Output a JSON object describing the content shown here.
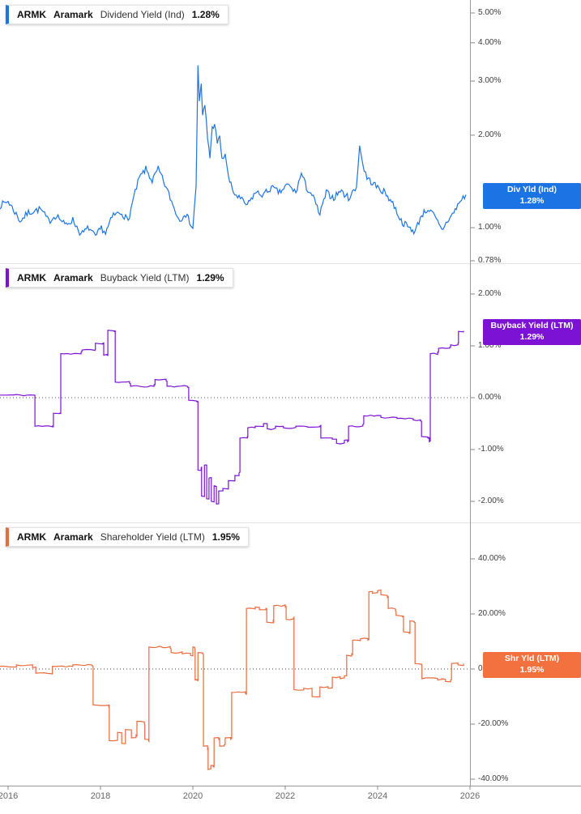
{
  "x_axis": {
    "labels": [
      {
        "year": 2016,
        "text": "2016"
      },
      {
        "year": 2018,
        "text": "2018"
      },
      {
        "year": 2020,
        "text": "2020"
      },
      {
        "year": 2022,
        "text": "2022"
      },
      {
        "year": 2024,
        "text": "2024"
      },
      {
        "year": 2026,
        "text": "2026"
      }
    ]
  },
  "chart_data": [
    {
      "type": "line",
      "legend": {
        "ticker": "ARMK",
        "company": "Aramark",
        "series": "Dividend Yield (Ind)",
        "value": "1.28%"
      },
      "color": "#1c74e4",
      "scale": "log",
      "ylim": [
        0.766,
        5.51
      ],
      "yticks": [
        {
          "v": 5,
          "label": "5.00%"
        },
        {
          "v": 4,
          "label": "4.00%"
        },
        {
          "v": 3,
          "label": "3.00%"
        },
        {
          "v": 2,
          "label": "2.00%"
        },
        {
          "v": 1,
          "label": "1.00%"
        },
        {
          "v": 0.78,
          "label": "0.78%"
        }
      ],
      "zero_line": false,
      "badge": {
        "label": "Div Yld (Ind)",
        "value": "1.28%",
        "color": "#1c74e4",
        "v": 1.28
      },
      "interp": "noisy",
      "jitter": 0.05,
      "jitter_rel": true,
      "seed": 7,
      "points": [
        [
          2015.82,
          1.18
        ],
        [
          2016.0,
          1.22
        ],
        [
          2016.26,
          1.05
        ],
        [
          2016.44,
          1.12
        ],
        [
          2016.7,
          1.15
        ],
        [
          2016.88,
          1.05
        ],
        [
          2017.05,
          1.1
        ],
        [
          2017.23,
          1.02
        ],
        [
          2017.4,
          1.06
        ],
        [
          2017.58,
          0.95
        ],
        [
          2017.75,
          1.0
        ],
        [
          2017.89,
          0.93
        ],
        [
          2018.02,
          1.0
        ],
        [
          2018.11,
          0.96
        ],
        [
          2018.28,
          1.1
        ],
        [
          2018.46,
          1.12
        ],
        [
          2018.6,
          1.05
        ],
        [
          2018.72,
          1.25
        ],
        [
          2018.84,
          1.45
        ],
        [
          2018.98,
          1.55
        ],
        [
          2019.12,
          1.42
        ],
        [
          2019.25,
          1.55
        ],
        [
          2019.42,
          1.35
        ],
        [
          2019.6,
          1.15
        ],
        [
          2019.72,
          1.05
        ],
        [
          2019.82,
          1.12
        ],
        [
          2019.93,
          1.05
        ],
        [
          2020.0,
          1.0
        ],
        [
          2020.07,
          1.35
        ],
        [
          2020.11,
          3.4
        ],
        [
          2020.14,
          2.6
        ],
        [
          2020.18,
          2.9
        ],
        [
          2020.21,
          2.3
        ],
        [
          2020.26,
          2.5
        ],
        [
          2020.32,
          1.95
        ],
        [
          2020.37,
          1.7
        ],
        [
          2020.42,
          2.1
        ],
        [
          2020.47,
          2.2
        ],
        [
          2020.53,
          1.85
        ],
        [
          2020.58,
          2.0
        ],
        [
          2020.63,
          1.65
        ],
        [
          2020.7,
          1.75
        ],
        [
          2020.77,
          1.45
        ],
        [
          2020.88,
          1.3
        ],
        [
          2021.0,
          1.25
        ],
        [
          2021.18,
          1.18
        ],
        [
          2021.35,
          1.3
        ],
        [
          2021.53,
          1.28
        ],
        [
          2021.7,
          1.35
        ],
        [
          2021.88,
          1.3
        ],
        [
          2022.05,
          1.38
        ],
        [
          2022.23,
          1.3
        ],
        [
          2022.35,
          1.5
        ],
        [
          2022.46,
          1.35
        ],
        [
          2022.58,
          1.28
        ],
        [
          2022.75,
          1.1
        ],
        [
          2022.89,
          1.3
        ],
        [
          2023.05,
          1.25
        ],
        [
          2023.19,
          1.32
        ],
        [
          2023.37,
          1.25
        ],
        [
          2023.54,
          1.35
        ],
        [
          2023.61,
          1.85
        ],
        [
          2023.68,
          1.6
        ],
        [
          2023.77,
          1.45
        ],
        [
          2023.89,
          1.4
        ],
        [
          2024.0,
          1.35
        ],
        [
          2024.16,
          1.3
        ],
        [
          2024.33,
          1.2
        ],
        [
          2024.51,
          1.05
        ],
        [
          2024.68,
          1.0
        ],
        [
          2024.81,
          0.97
        ],
        [
          2024.95,
          1.1
        ],
        [
          2025.09,
          1.15
        ],
        [
          2025.21,
          1.1
        ],
        [
          2025.39,
          0.98
        ],
        [
          2025.51,
          1.05
        ],
        [
          2025.65,
          1.12
        ],
        [
          2025.79,
          1.22
        ],
        [
          2025.91,
          1.28
        ]
      ]
    },
    {
      "type": "line",
      "legend": {
        "ticker": "ARMK",
        "company": "Aramark",
        "series": "Buyback Yield (LTM)",
        "value": "1.29%"
      },
      "color": "#7b12d4",
      "scale": "linear",
      "ylim": [
        -2.406,
        2.594
      ],
      "yticks": [
        {
          "v": 2,
          "label": "2.00%"
        },
        {
          "v": 1,
          "label": "1.00%"
        },
        {
          "v": 0,
          "label": "0.00%"
        },
        {
          "v": -1,
          "label": "-1.00%"
        },
        {
          "v": -2,
          "label": "-2.00%"
        }
      ],
      "zero_line": true,
      "badge": {
        "label": "Buyback Yield (LTM)",
        "value": "1.29%",
        "color": "#7b12d4",
        "v": 1.29
      },
      "interp": "step",
      "jitter": 0.03,
      "jitter_rel": false,
      "seed": 11,
      "points": [
        [
          2015.82,
          0.05
        ],
        [
          2016.56,
          0.05
        ],
        [
          2016.58,
          -0.55
        ],
        [
          2016.96,
          -0.55
        ],
        [
          2016.98,
          -0.3
        ],
        [
          2017.12,
          -0.3
        ],
        [
          2017.14,
          0.85
        ],
        [
          2017.58,
          0.88
        ],
        [
          2017.6,
          0.92
        ],
        [
          2017.88,
          0.92
        ],
        [
          2017.89,
          1.05
        ],
        [
          2018.05,
          1.05
        ],
        [
          2018.07,
          0.82
        ],
        [
          2018.14,
          0.82
        ],
        [
          2018.16,
          1.3
        ],
        [
          2018.3,
          1.28
        ],
        [
          2018.32,
          0.3
        ],
        [
          2018.63,
          0.28
        ],
        [
          2018.65,
          0.22
        ],
        [
          2019.16,
          0.25
        ],
        [
          2019.18,
          0.35
        ],
        [
          2019.42,
          0.33
        ],
        [
          2019.44,
          0.22
        ],
        [
          2019.89,
          0.2
        ],
        [
          2019.91,
          -0.05
        ],
        [
          2020.09,
          -0.08
        ],
        [
          2020.11,
          -1.4
        ],
        [
          2020.18,
          -1.35
        ],
        [
          2020.19,
          -1.9
        ],
        [
          2020.25,
          -1.3
        ],
        [
          2020.3,
          -1.95
        ],
        [
          2020.35,
          -1.55
        ],
        [
          2020.4,
          -2.0
        ],
        [
          2020.46,
          -1.7
        ],
        [
          2020.51,
          -2.05
        ],
        [
          2020.56,
          -1.8
        ],
        [
          2020.65,
          -1.75
        ],
        [
          2020.77,
          -1.6
        ],
        [
          2020.91,
          -1.5
        ],
        [
          2021.0,
          -1.45
        ],
        [
          2021.02,
          -0.78
        ],
        [
          2021.18,
          -0.75
        ],
        [
          2021.19,
          -0.58
        ],
        [
          2021.35,
          -0.55
        ],
        [
          2021.53,
          -0.5
        ],
        [
          2021.61,
          -0.6
        ],
        [
          2021.79,
          -0.55
        ],
        [
          2021.96,
          -0.58
        ],
        [
          2022.23,
          -0.55
        ],
        [
          2022.49,
          -0.57
        ],
        [
          2022.75,
          -0.55
        ],
        [
          2022.77,
          -0.78
        ],
        [
          2023.02,
          -0.8
        ],
        [
          2023.11,
          -0.88
        ],
        [
          2023.28,
          -0.82
        ],
        [
          2023.35,
          -0.85
        ],
        [
          2023.37,
          -0.55
        ],
        [
          2023.68,
          -0.52
        ],
        [
          2023.7,
          -0.35
        ],
        [
          2024.07,
          -0.38
        ],
        [
          2024.42,
          -0.4
        ],
        [
          2024.77,
          -0.43
        ],
        [
          2024.93,
          -0.45
        ],
        [
          2024.95,
          -0.75
        ],
        [
          2025.09,
          -0.78
        ],
        [
          2025.12,
          -0.85
        ],
        [
          2025.14,
          0.85
        ],
        [
          2025.3,
          0.88
        ],
        [
          2025.32,
          0.95
        ],
        [
          2025.56,
          0.97
        ],
        [
          2025.58,
          1.02
        ],
        [
          2025.74,
          1.05
        ],
        [
          2025.75,
          1.28
        ],
        [
          2025.86,
          1.29
        ]
      ]
    },
    {
      "type": "line",
      "legend": {
        "ticker": "ARMK",
        "company": "Aramark",
        "series": "Shareholder Yield (LTM)",
        "value": "1.95%"
      },
      "color": "#ea6a3c",
      "scale": "linear",
      "ylim": [
        -42.35,
        53.24
      ],
      "yticks": [
        {
          "v": 40,
          "label": "40.00%"
        },
        {
          "v": 20,
          "label": "20.00%"
        },
        {
          "v": 0,
          "label": "0.00%"
        },
        {
          "v": -20,
          "label": "-20.00%"
        },
        {
          "v": -40,
          "label": "-40.00%"
        }
      ],
      "zero_line": true,
      "badge": {
        "label": "Shr Yld (LTM)",
        "value": "1.95%",
        "color": "#f3713f",
        "v": 1.95
      },
      "interp": "step",
      "jitter": 0.6,
      "jitter_rel": false,
      "seed": 13,
      "points": [
        [
          2015.82,
          1.0
        ],
        [
          2016.18,
          1.5
        ],
        [
          2016.53,
          0.5
        ],
        [
          2016.6,
          -1.5
        ],
        [
          2016.95,
          -1.8
        ],
        [
          2016.96,
          1.0
        ],
        [
          2017.4,
          1.5
        ],
        [
          2017.82,
          1.2
        ],
        [
          2017.84,
          -13
        ],
        [
          2018.18,
          -13.5
        ],
        [
          2018.19,
          -26
        ],
        [
          2018.37,
          -23
        ],
        [
          2018.46,
          -27
        ],
        [
          2018.54,
          -22
        ],
        [
          2018.67,
          -25
        ],
        [
          2018.77,
          -24
        ],
        [
          2018.79,
          -19
        ],
        [
          2018.95,
          -20
        ],
        [
          2018.96,
          -25.5
        ],
        [
          2019.04,
          -26
        ],
        [
          2019.05,
          8
        ],
        [
          2019.51,
          7.5
        ],
        [
          2019.53,
          6
        ],
        [
          2019.77,
          5.5
        ],
        [
          2019.95,
          5
        ],
        [
          2020.0,
          8
        ],
        [
          2020.04,
          7.5
        ],
        [
          2020.05,
          -4
        ],
        [
          2020.09,
          -4
        ],
        [
          2020.11,
          6
        ],
        [
          2020.21,
          5.5
        ],
        [
          2020.23,
          -28
        ],
        [
          2020.32,
          -29
        ],
        [
          2020.33,
          -36.5
        ],
        [
          2020.39,
          -35
        ],
        [
          2020.44,
          -35.5
        ],
        [
          2020.46,
          -25
        ],
        [
          2020.56,
          -25.5
        ],
        [
          2020.58,
          -28
        ],
        [
          2020.68,
          -27.5
        ],
        [
          2020.7,
          -25
        ],
        [
          2020.82,
          -25.5
        ],
        [
          2020.84,
          -8.5
        ],
        [
          2021.14,
          -9
        ],
        [
          2021.16,
          22
        ],
        [
          2021.35,
          22.5
        ],
        [
          2021.44,
          21.5
        ],
        [
          2021.58,
          22
        ],
        [
          2021.6,
          17
        ],
        [
          2021.74,
          17.5
        ],
        [
          2021.75,
          23
        ],
        [
          2022.0,
          22.5
        ],
        [
          2022.02,
          18
        ],
        [
          2022.18,
          18.5
        ],
        [
          2022.19,
          -7.5
        ],
        [
          2022.4,
          -7
        ],
        [
          2022.58,
          -10
        ],
        [
          2022.75,
          -6.5
        ],
        [
          2022.93,
          -7
        ],
        [
          2023.02,
          -3
        ],
        [
          2023.19,
          -3.5
        ],
        [
          2023.28,
          -2.5
        ],
        [
          2023.33,
          5
        ],
        [
          2023.44,
          5.5
        ],
        [
          2023.46,
          10.5
        ],
        [
          2023.63,
          11
        ],
        [
          2023.79,
          10.5
        ],
        [
          2023.81,
          28
        ],
        [
          2023.89,
          27.5
        ],
        [
          2024.0,
          28.5
        ],
        [
          2024.07,
          27
        ],
        [
          2024.21,
          26
        ],
        [
          2024.23,
          22
        ],
        [
          2024.39,
          21
        ],
        [
          2024.4,
          19.5
        ],
        [
          2024.54,
          19
        ],
        [
          2024.56,
          13.5
        ],
        [
          2024.68,
          13
        ],
        [
          2024.7,
          17.5
        ],
        [
          2024.79,
          17
        ],
        [
          2024.81,
          2
        ],
        [
          2024.95,
          1.5
        ],
        [
          2024.96,
          -3.5
        ],
        [
          2025.3,
          -4
        ],
        [
          2025.39,
          -3.5
        ],
        [
          2025.47,
          -4.5
        ],
        [
          2025.58,
          -4
        ],
        [
          2025.6,
          2
        ],
        [
          2025.74,
          1.5
        ],
        [
          2025.86,
          1.95
        ]
      ]
    }
  ]
}
